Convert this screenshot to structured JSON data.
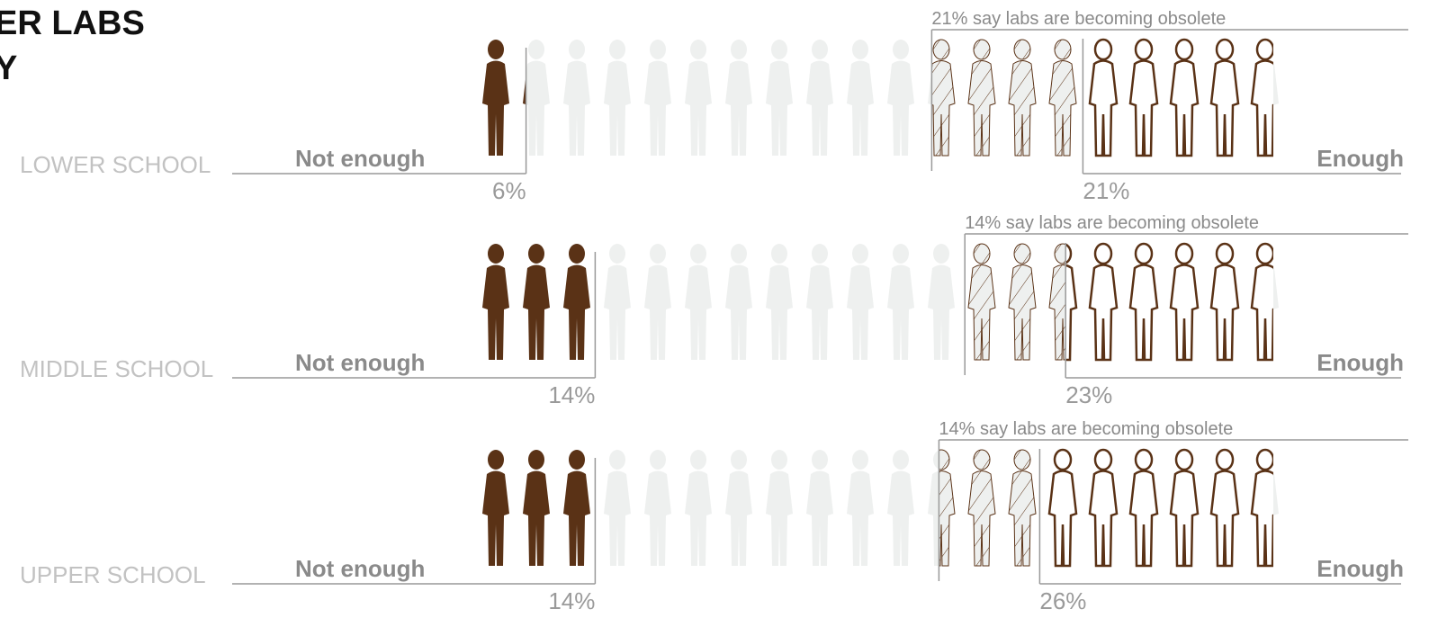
{
  "chart_data": {
    "type": "pictograph",
    "title": [
      "ER LABS",
      "Y"
    ],
    "categories": [
      "LOWER SCHOOL",
      "MIDDLE SCHOOL",
      "UPPER SCHOOL"
    ],
    "color": "#5a3216",
    "series": [
      {
        "name": "Not enough",
        "values": [
          6,
          14,
          14
        ],
        "value_labels": [
          "6%",
          "14%",
          "14%"
        ]
      },
      {
        "name": "Enough",
        "values": [
          21,
          23,
          26
        ],
        "value_labels": [
          "21%",
          "23%",
          "26%"
        ]
      }
    ],
    "obsolete": {
      "values": [
        21,
        14,
        14
      ],
      "labels": [
        "21% say labs are becoming obsolete",
        "14% say labs are becoming obsolete",
        "14% say labs are becoming obsolete"
      ]
    }
  }
}
